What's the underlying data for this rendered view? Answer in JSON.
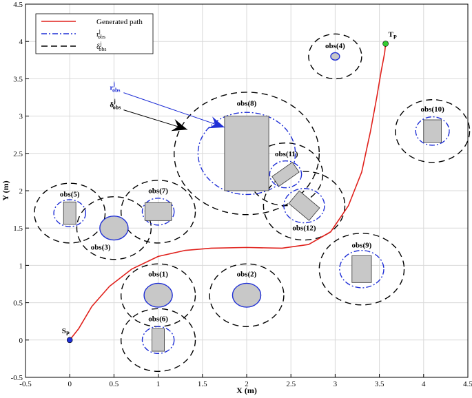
{
  "chart_data": {
    "type": "line",
    "title": "",
    "xlabel": "X (m)",
    "ylabel": "Y (m)",
    "xlim": [
      -0.5,
      4.5
    ],
    "ylim": [
      -0.5,
      4.5
    ],
    "xticks": [
      "-0.5",
      "0",
      "0.5",
      "1",
      "1.5",
      "2",
      "2.5",
      "3",
      "3.5",
      "4",
      "4.5"
    ],
    "yticks": [
      "-0.5",
      "0",
      "0.5",
      "1",
      "1.5",
      "2",
      "2.5",
      "3",
      "3.5",
      "4",
      "4.5"
    ],
    "grid": true,
    "legend_position": "top-left",
    "legend": [
      {
        "label": "Generated path",
        "style": "solid",
        "color": "#e0201b"
      },
      {
        "label": "r",
        "sup": "j",
        "sub": "obs",
        "style": "dashdot",
        "color": "#1f2fd6"
      },
      {
        "label": "δ",
        "sup": "j",
        "sub": "obs",
        "style": "dashed",
        "color": "#000000"
      }
    ],
    "path": {
      "name": "Generated path",
      "color": "#e0201b",
      "x": [
        0,
        0.1,
        0.25,
        0.45,
        0.7,
        1.0,
        1.3,
        1.6,
        2.0,
        2.4,
        2.7,
        2.95,
        3.15,
        3.3,
        3.4,
        3.47,
        3.52,
        3.56,
        3.57
      ],
      "y": [
        0,
        0.15,
        0.45,
        0.72,
        0.95,
        1.12,
        1.2,
        1.23,
        1.24,
        1.23,
        1.28,
        1.45,
        1.8,
        2.25,
        2.8,
        3.25,
        3.6,
        3.85,
        3.97
      ]
    },
    "start_point": {
      "label": "S",
      "sub": "P",
      "x": 0,
      "y": 0,
      "color": "#1f2fd6"
    },
    "target_point": {
      "label": "T",
      "sub": "P",
      "x": 3.57,
      "y": 3.97,
      "color": "#33cc33"
    },
    "obstacles": [
      {
        "label": "obs(1)",
        "shape": "ellipse",
        "cx": 1.0,
        "cy": 0.6,
        "rx": 0.16,
        "ry": 0.16,
        "r": 0.19,
        "delta": 0.42,
        "label_x": 1.0,
        "label_y": 0.85
      },
      {
        "label": "obs(2)",
        "shape": "ellipse",
        "cx": 2.0,
        "cy": 0.6,
        "rx": 0.16,
        "ry": 0.16,
        "r": 0.19,
        "delta": 0.42,
        "label_x": 2.0,
        "label_y": 0.85
      },
      {
        "label": "obs(3)",
        "shape": "ellipse",
        "cx": 0.5,
        "cy": 1.5,
        "rx": 0.16,
        "ry": 0.16,
        "r": 0.19,
        "delta": 0.42,
        "label_x": 0.35,
        "label_y": 1.21
      },
      {
        "label": "obs(4)",
        "shape": "ellipse",
        "cx": 3.0,
        "cy": 3.8,
        "rx": 0.05,
        "ry": 0.05,
        "r": 0.06,
        "delta": 0.3,
        "label_x": 3.0,
        "label_y": 3.91
      },
      {
        "label": "obs(5)",
        "shape": "rect",
        "cx": 0.0,
        "cy": 1.7,
        "w": 0.14,
        "h": 0.3,
        "angle": 0,
        "r": 0.18,
        "delta": 0.4,
        "label_x": 0.0,
        "label_y": 1.92
      },
      {
        "label": "obs(6)",
        "shape": "rect",
        "cx": 1.0,
        "cy": 0.0,
        "w": 0.14,
        "h": 0.3,
        "angle": 0,
        "r": 0.18,
        "delta": 0.42,
        "label_x": 1.0,
        "label_y": 0.25
      },
      {
        "label": "obs(7)",
        "shape": "rect",
        "cx": 1.0,
        "cy": 1.72,
        "w": 0.3,
        "h": 0.24,
        "angle": 0,
        "r": 0.18,
        "delta": 0.42,
        "label_x": 1.0,
        "label_y": 1.97
      },
      {
        "label": "obs(8)",
        "shape": "rect",
        "cx": 2.0,
        "cy": 2.5,
        "w": 0.5,
        "h": 1.0,
        "angle": 0,
        "r": 0.55,
        "delta": 0.82,
        "label_x": 2.0,
        "label_y": 3.14
      },
      {
        "label": "obs(9)",
        "shape": "rect",
        "cx": 3.3,
        "cy": 0.95,
        "w": 0.22,
        "h": 0.36,
        "angle": 0,
        "r": 0.25,
        "delta": 0.48,
        "label_x": 3.3,
        "label_y": 1.24
      },
      {
        "label": "obs(10)",
        "shape": "rect",
        "cx": 4.1,
        "cy": 2.8,
        "w": 0.2,
        "h": 0.3,
        "angle": 0,
        "r": 0.19,
        "delta": 0.42,
        "label_x": 4.1,
        "label_y": 3.06
      },
      {
        "label": "obs(11)",
        "shape": "rect",
        "cx": 2.44,
        "cy": 2.22,
        "w": 0.28,
        "h": 0.16,
        "angle": 35,
        "r": 0.18,
        "delta": 0.42,
        "label_x": 2.45,
        "label_y": 2.46
      },
      {
        "label": "obs(12)",
        "shape": "rect",
        "cx": 2.65,
        "cy": 1.8,
        "w": 0.3,
        "h": 0.22,
        "angle": -40,
        "r": 0.23,
        "delta": 0.46,
        "label_x": 2.65,
        "label_y": 1.47
      }
    ],
    "annotations": [
      {
        "label": "r",
        "sup": "j",
        "sub": "obs",
        "color": "#1f2fd6",
        "text_x": 0.5,
        "text_y": 3.35,
        "tip_x": 1.75,
        "tip_y": 2.85
      },
      {
        "label": "δ",
        "sup": "j",
        "sub": "obs",
        "color": "#000000",
        "text_x": 0.5,
        "text_y": 3.12,
        "tip_x": 1.33,
        "tip_y": 2.82
      }
    ]
  }
}
